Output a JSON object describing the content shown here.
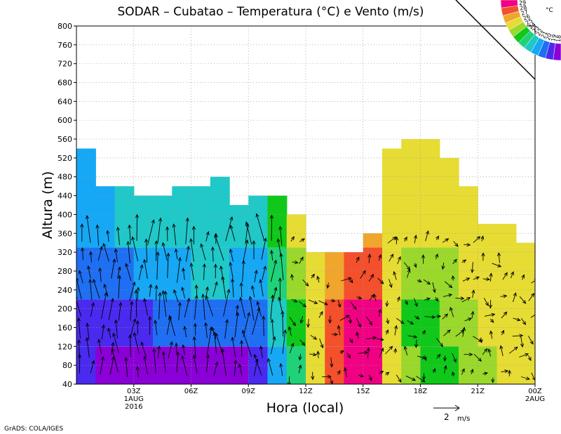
{
  "chart_data": {
    "type": "heatmap",
    "title": "SODAR  –  Cubatao  –  Temperatura (°C) e Vento (m/s)",
    "xlabel": "Hora (local)",
    "ylabel": "Altura (m)",
    "x_range_hours": [
      0,
      24
    ],
    "ylim": [
      40,
      800
    ],
    "y_ticks": [
      40,
      80,
      120,
      160,
      200,
      240,
      280,
      320,
      360,
      400,
      440,
      480,
      520,
      560,
      600,
      640,
      680,
      720,
      760,
      800
    ],
    "x_ticks": [
      {
        "hour": 3,
        "label": "03Z",
        "sub1": "1AUG",
        "sub2": "2016"
      },
      {
        "hour": 6,
        "label": "06Z",
        "sub1": "",
        "sub2": ""
      },
      {
        "hour": 9,
        "label": "09Z",
        "sub1": "",
        "sub2": ""
      },
      {
        "hour": 12,
        "label": "12Z",
        "sub1": "",
        "sub2": ""
      },
      {
        "hour": 15,
        "label": "15Z",
        "sub1": "",
        "sub2": ""
      },
      {
        "hour": 18,
        "label": "18Z",
        "sub1": "",
        "sub2": ""
      },
      {
        "hour": 21,
        "label": "21Z",
        "sub1": "",
        "sub2": ""
      },
      {
        "hour": 24,
        "label": "00Z",
        "sub1": "2AUG",
        "sub2": ""
      }
    ],
    "grid": true,
    "colorbar": {
      "unit": "°C",
      "levels": [
        18,
        19,
        20,
        21,
        22,
        23,
        24,
        25,
        26,
        27,
        28,
        29
      ],
      "colors": [
        "#8a00d6",
        "#4a2aef",
        "#1f6ff2",
        "#16a8f5",
        "#20c8c8",
        "#1fd27a",
        "#10c81a",
        "#9ad82c",
        "#e6dc34",
        "#f0a62c",
        "#f4502c",
        "#f00082"
      ]
    },
    "data_top_m": [
      540,
      460,
      440,
      440,
      460,
      480,
      420,
      440,
      400,
      320,
      320,
      360,
      540,
      560,
      520,
      460,
      380,
      340
    ],
    "temperature_columns": [
      {
        "hours": [
          0,
          1
        ],
        "values": [
          19,
          19,
          20,
          21
        ]
      },
      {
        "hours": [
          1,
          2
        ],
        "values": [
          18,
          19,
          20,
          21
        ]
      },
      {
        "hours": [
          2,
          3
        ],
        "values": [
          18,
          19,
          20,
          22
        ]
      },
      {
        "hours": [
          3,
          4
        ],
        "values": [
          18,
          19,
          21,
          22
        ]
      },
      {
        "hours": [
          4,
          5
        ],
        "values": [
          18,
          20,
          21,
          22
        ]
      },
      {
        "hours": [
          5,
          6
        ],
        "values": [
          18,
          20,
          21,
          22
        ]
      },
      {
        "hours": [
          6,
          7
        ],
        "values": [
          18,
          20,
          22,
          22
        ]
      },
      {
        "hours": [
          7,
          8
        ],
        "values": [
          18,
          20,
          22,
          22
        ]
      },
      {
        "hours": [
          8,
          9
        ],
        "values": [
          18,
          20,
          21,
          22
        ]
      },
      {
        "hours": [
          9,
          10
        ],
        "values": [
          19,
          20,
          21,
          22
        ]
      },
      {
        "hours": [
          10,
          11
        ],
        "values": [
          21,
          22,
          23,
          24
        ]
      },
      {
        "hours": [
          11,
          12
        ],
        "values": [
          23,
          24,
          25,
          26
        ]
      },
      {
        "hours": [
          12,
          13
        ],
        "values": [
          26,
          26,
          26,
          26
        ]
      },
      {
        "hours": [
          13,
          14
        ],
        "values": [
          28,
          28,
          27,
          27
        ]
      },
      {
        "hours": [
          14,
          15
        ],
        "values": [
          29,
          29,
          28,
          28
        ]
      },
      {
        "hours": [
          15,
          16
        ],
        "values": [
          29,
          29,
          28,
          27
        ]
      },
      {
        "hours": [
          16,
          17
        ],
        "values": [
          26,
          26,
          26,
          26
        ]
      },
      {
        "hours": [
          17,
          18
        ],
        "values": [
          25,
          24,
          25,
          26
        ]
      },
      {
        "hours": [
          18,
          19
        ],
        "values": [
          24,
          24,
          25,
          26
        ]
      },
      {
        "hours": [
          19,
          20
        ],
        "values": [
          24,
          25,
          25,
          26
        ]
      },
      {
        "hours": [
          20,
          21
        ],
        "values": [
          25,
          25,
          26,
          26
        ]
      },
      {
        "hours": [
          21,
          22
        ],
        "values": [
          25,
          26,
          26,
          26
        ]
      },
      {
        "hours": [
          22,
          23
        ],
        "values": [
          26,
          26,
          26,
          26
        ]
      },
      {
        "hours": [
          23,
          24
        ],
        "values": [
          26,
          26,
          26,
          26
        ]
      }
    ],
    "wind_heights_m": [
      60,
      100,
      140,
      180,
      220,
      260,
      300,
      340
    ],
    "wind_reference": {
      "speed": 2,
      "label": "2",
      "unit": "m/s"
    }
  },
  "footer": {
    "credit": "GrADS: COLA/IGES"
  }
}
